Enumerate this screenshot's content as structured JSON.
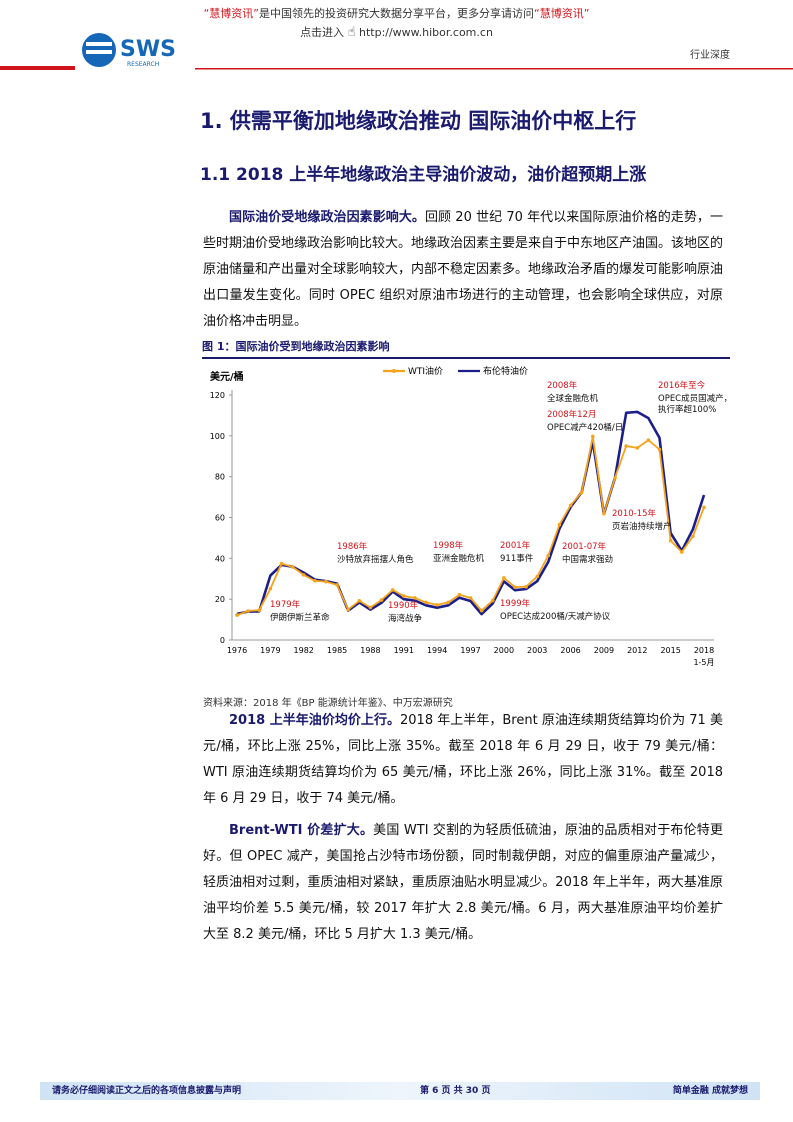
{
  "header": {
    "notice_brand": "“慧博资讯”",
    "notice_text": "是中国领先的投资研究大数据分享平台，更多分享请访问",
    "notice_brand2": "“慧博资讯”",
    "link_prefix": "点击进入",
    "link": "http://www.hibor.com.cn",
    "logo": "SWS",
    "logo_sub": "RESEARCH",
    "tag": "行业深度"
  },
  "heading1": "1. 供需平衡加地缘政治推动 国际油价中枢上行",
  "heading2": "1.1 2018 上半年地缘政治主导油价波动，油价超预期上涨",
  "paragraphs": [
    {
      "lead": "国际油价受地缘政治因素影响大。",
      "body": "回顾 20 世纪 70 年代以来国际原油价格的走势，一些时期油价受地缘政治影响比较大。地缘政治因素主要是来自于中东地区产油国。该地区的原油储量和产出量对全球影响较大，内部不稳定因素多。地缘政治矛盾的爆发可能影响原油出口量发生变化。同时 OPEC 组织对原油市场进行的主动管理，也会影响全球供应，对原油价格冲击明显。"
    },
    {
      "lead": "2018 上半年油价均价上行。",
      "body": "2018 年上半年，Brent 原油连续期货结算均价为 71 美元/桶，环比上涨 25%，同比上涨 35%。截至 2018 年 6 月 29 日，收于 79 美元/桶：WTI 原油连续期货结算均价为 65 美元/桶，环比上涨 26%，同比上涨 31%。截至 2018 年 6 月 29 日，收于 74 美元/桶。"
    },
    {
      "lead": "Brent-WTI 价差扩大。",
      "body": "美国 WTI 交割的为轻质低硫油，原油的品质相对于布伦特更好。但 OPEC 减产，美国抢占沙特市场份额，同时制裁伊朗，对应的偏重原油产量减少，轻质油相对过剩，重质油相对紧缺，重质原油贴水明显减少。2018 年上半年，两大基准原油平均价差 5.5 美元/桶，较 2017 年扩大 2.8 美元/桶。6 月，两大基准原油平均价差扩大至 8.2 美元/桶，环比 5 月扩大 1.3 美元/桶。"
    }
  ],
  "chart_data": {
    "type": "line",
    "title": "图 1：国际油价受到地缘政治因素影响",
    "source": "资料来源：2018 年《BP 能源统计年鉴》、中万宏源研究",
    "y_label": "美元/桶",
    "categories": [
      "1976",
      null,
      null,
      "1979",
      null,
      null,
      "1982",
      null,
      null,
      "1985",
      null,
      null,
      "1988",
      null,
      null,
      "1991",
      null,
      null,
      "1994",
      null,
      null,
      "1997",
      null,
      null,
      "2000",
      null,
      null,
      "2003",
      null,
      null,
      "2006",
      null,
      null,
      "2009",
      null,
      null,
      "2012",
      null,
      null,
      "2015",
      null,
      null,
      "2018"
    ],
    "x_note": "1-5月",
    "ylim": [
      0,
      120
    ],
    "yticks": [
      0,
      20,
      40,
      60,
      80,
      100,
      120
    ],
    "series": [
      {
        "name": "WTI油价",
        "color": "#f5a31a",
        "marker": true,
        "values": [
          12.2,
          14.2,
          14.6,
          25.1,
          37.4,
          35.8,
          31.9,
          29.0,
          28.6,
          27.0,
          14.9,
          19.2,
          15.9,
          19.6,
          24.5,
          21.5,
          20.6,
          18.4,
          17.2,
          18.4,
          22.2,
          20.6,
          14.4,
          19.3,
          30.4,
          25.9,
          26.1,
          31.1,
          41.4,
          56.5,
          66.0,
          72.3,
          99.7,
          61.9,
          79.5,
          95.0,
          94.1,
          97.9,
          93.3,
          48.7,
          43.1,
          50.8,
          65.0
        ]
      },
      {
        "name": "布伦特油价",
        "color": "#1c1f8a",
        "marker": false,
        "values": [
          12.8,
          13.9,
          14.0,
          31.6,
          36.8,
          35.9,
          33.0,
          29.6,
          28.8,
          27.6,
          14.4,
          18.4,
          14.9,
          18.2,
          23.7,
          20.0,
          19.3,
          17.0,
          15.8,
          17.0,
          20.7,
          19.1,
          12.7,
          17.9,
          28.7,
          24.4,
          25.0,
          28.8,
          38.3,
          54.5,
          65.1,
          72.4,
          97.3,
          61.7,
          79.5,
          111.3,
          111.7,
          108.7,
          99.0,
          52.4,
          43.7,
          54.2,
          71.0
        ]
      }
    ],
    "annotations": [
      {
        "date": "1979年",
        "event": [
          "伊朗伊斯兰革命"
        ]
      },
      {
        "date": "1986年",
        "event": [
          "沙特放弃摇摆人角色"
        ]
      },
      {
        "date": "1990年",
        "event": [
          "海湾战争"
        ]
      },
      {
        "date": "1998年",
        "event": [
          "亚洲金融危机"
        ]
      },
      {
        "date": "1999年",
        "event": [
          "OPEC达成200桶/天减产协议"
        ]
      },
      {
        "date": "2001年",
        "event": [
          "911事件"
        ]
      },
      {
        "date": "2001-07年",
        "event": [
          "中国需求强劲"
        ]
      },
      {
        "date": "2008年",
        "event": [
          "全球金融危机"
        ]
      },
      {
        "date": "2008年12月",
        "event": [
          "OPEC减产420桶/日"
        ]
      },
      {
        "date": "2010-15年",
        "event": [
          "页岩油持续增产"
        ]
      },
      {
        "date": "2016年至今",
        "event": [
          "OPEC成员国减产，",
          "执行率超100%"
        ]
      }
    ]
  },
  "footer": {
    "left": "请务必仔细阅读正文之后的各项信息披露与声明",
    "center": "第 6 页 共 30 页",
    "right": "简单金融 成就梦想"
  }
}
